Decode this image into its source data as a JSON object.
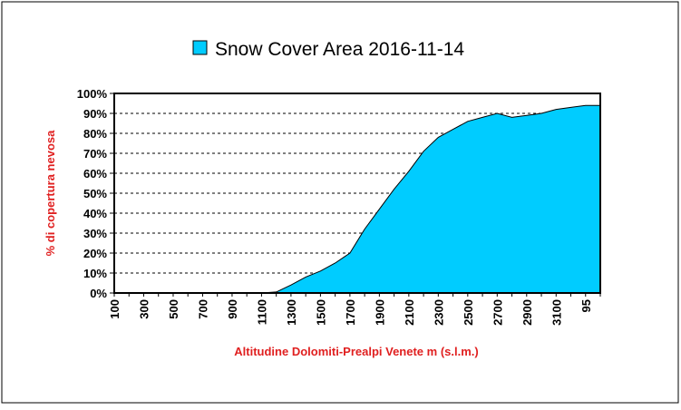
{
  "chart_data": {
    "type": "area",
    "title": "Snow Cover Area 2016-11-14",
    "xlabel": "Altitudine Dolomiti-Prealpi Venete m (s.l.m.)",
    "ylabel": "% di copertura nevosa",
    "ylim": [
      0,
      100
    ],
    "y_ticks": [
      "0%",
      "10%",
      "20%",
      "30%",
      "40%",
      "50%",
      "60%",
      "70%",
      "80%",
      "90%",
      "100%"
    ],
    "grid": "horizontal dashed",
    "legend": "top",
    "colors": {
      "fill": "#00ccff",
      "outline": "#000000",
      "axis_title": "#e02020"
    },
    "x_tick_labels": [
      "100",
      "300",
      "500",
      "700",
      "900",
      "1100",
      "1300",
      "1500",
      "1700",
      "1900",
      "2100",
      "2300",
      "2500",
      "2700",
      "2900",
      "3100",
      "95"
    ],
    "series": [
      {
        "name": "Snow Cover Area 2016-11-14",
        "x": [
          100,
          200,
          300,
          400,
          500,
          600,
          700,
          800,
          900,
          1000,
          1100,
          1200,
          1300,
          1400,
          1500,
          1600,
          1700,
          1800,
          1900,
          2000,
          2100,
          2200,
          2300,
          2400,
          2500,
          2600,
          2700,
          2800,
          2900,
          3000,
          3100,
          3200,
          3300,
          3400
        ],
        "values": [
          0,
          0,
          0,
          0,
          0,
          0,
          0,
          0,
          0,
          0,
          0,
          0.5,
          4,
          8,
          11,
          15,
          20,
          32,
          42,
          52,
          61,
          71,
          78,
          82,
          86,
          88,
          90,
          88,
          89,
          90,
          92,
          93,
          94,
          94
        ]
      }
    ]
  }
}
